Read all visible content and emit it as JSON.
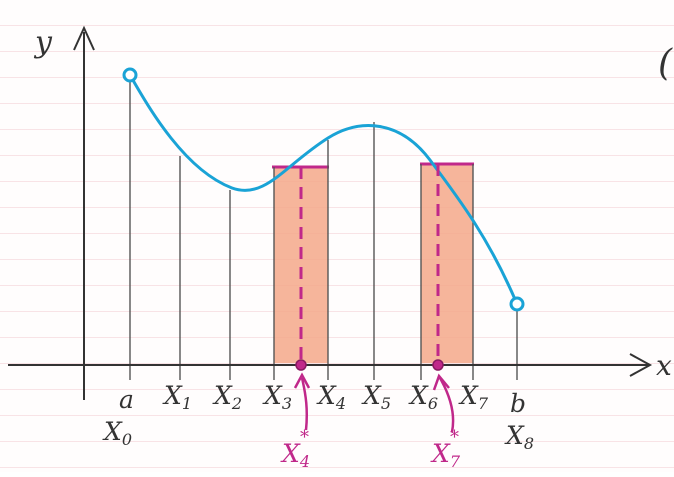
{
  "axes": {
    "y_label": "y",
    "x_label": "x"
  },
  "corner_text": "(",
  "endpoints": {
    "a": "a",
    "b": "b"
  },
  "partition": [
    {
      "base": "X",
      "sub": "0"
    },
    {
      "base": "X",
      "sub": "1"
    },
    {
      "base": "X",
      "sub": "2"
    },
    {
      "base": "X",
      "sub": "3"
    },
    {
      "base": "X",
      "sub": "4"
    },
    {
      "base": "X",
      "sub": "5"
    },
    {
      "base": "X",
      "sub": "6"
    },
    {
      "base": "X",
      "sub": "7"
    },
    {
      "base": "X",
      "sub": "8"
    }
  ],
  "sample_points": [
    {
      "base": "X",
      "sub": "4",
      "star": "*"
    },
    {
      "base": "X",
      "sub": "7",
      "star": "*"
    }
  ],
  "colors": {
    "curve": "#1aa3d6",
    "shading": "#f2a385",
    "highlight": "#c0288a",
    "ink": "#3a3a3a",
    "paper_lines": "#f1c2c8"
  }
}
